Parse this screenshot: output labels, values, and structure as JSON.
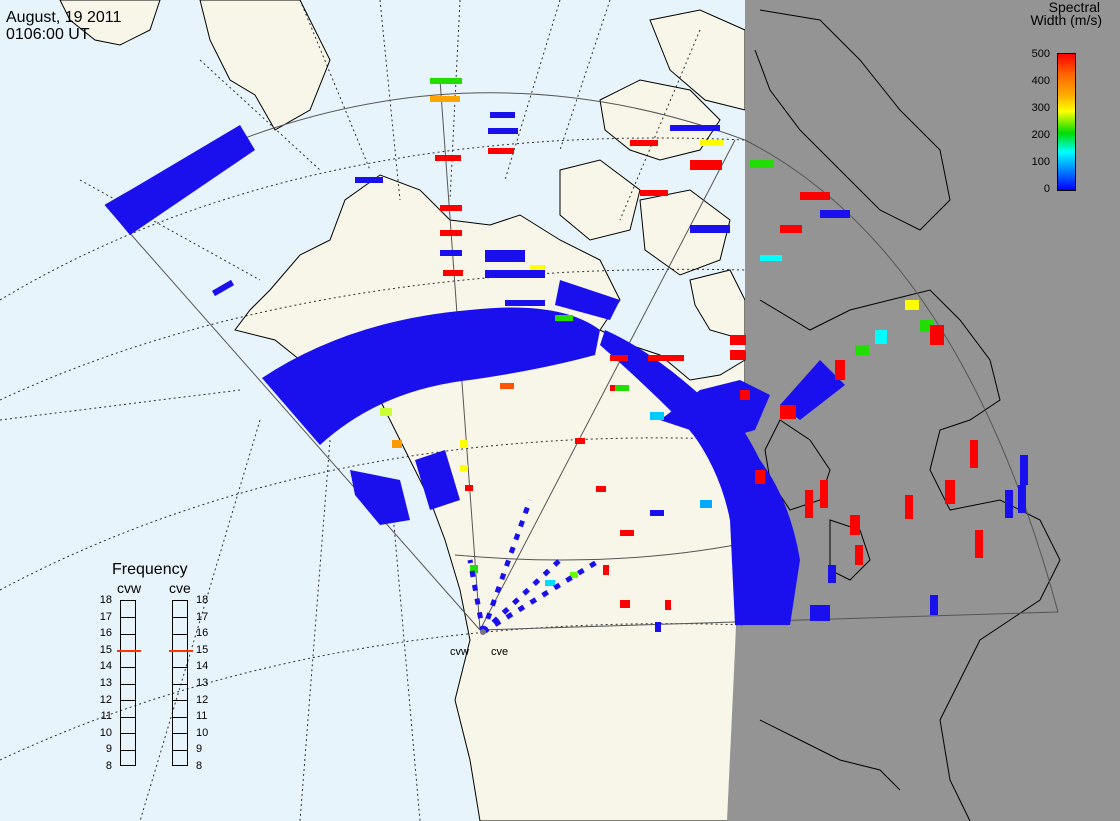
{
  "header": {
    "date": "August, 19 2011",
    "time": "0106:00 UT"
  },
  "colorbar": {
    "title_line1": "Spectral",
    "title_line2": "Width (m/s)",
    "ticks": [
      "500",
      "400",
      "300",
      "200",
      "100",
      "0"
    ],
    "stops": [
      "#ff0000",
      "#ffa500",
      "#ffff00",
      "#00dd00",
      "#00ffff",
      "#0000ff"
    ]
  },
  "frequency_panel": {
    "title": "Frequency",
    "radars": [
      {
        "name": "cvw",
        "value": 15
      },
      {
        "name": "cve",
        "value": 15
      }
    ],
    "ticks": [
      "18",
      "17",
      "16",
      "15",
      "14",
      "13",
      "12",
      "11",
      "10",
      "9",
      "8"
    ]
  },
  "radars": [
    {
      "name": "cvw",
      "label": "cvw"
    },
    {
      "name": "cve",
      "label": "cve"
    }
  ],
  "colors": {
    "ocean": "#e8f4fc",
    "land": "#f8f6e8",
    "night": "#949494",
    "coast": "#000000",
    "fov": "#555555",
    "marker": "#ff3300"
  }
}
